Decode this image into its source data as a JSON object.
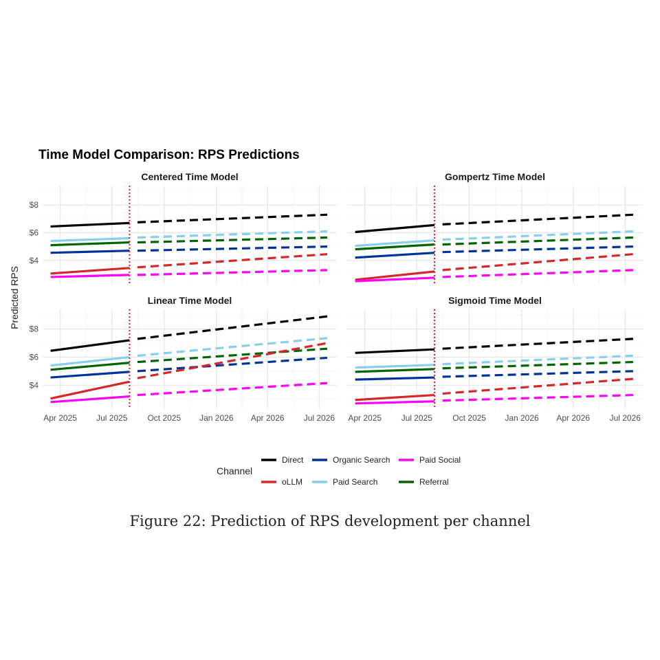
{
  "caption": "Figure 22: Prediction of RPS development per channel",
  "chart_data": {
    "type": "line",
    "title": "Time Model Comparison: RPS Predictions",
    "ylabel": "Predicted RPS",
    "xlabel": "",
    "x_range": [
      "2025-03-01",
      "2026-08-01"
    ],
    "y_range": [
      2.3,
      9.4
    ],
    "y_ticks": [
      4,
      6,
      8
    ],
    "y_tick_labels": [
      "$4",
      "$6",
      "$8"
    ],
    "x_ticks": [
      "2025-04-01",
      "2025-07-01",
      "2025-10-01",
      "2026-01-01",
      "2026-04-01",
      "2026-07-01"
    ],
    "x_tick_labels": [
      "Apr 2025",
      "Jul 2025",
      "Oct 2025",
      "Jan 2026",
      "Apr 2026",
      "Jul 2026"
    ],
    "cutoff_date": "2025-08-01",
    "grid": true,
    "legend": {
      "title": "Channel",
      "position": "bottom",
      "entries": [
        {
          "name": "Direct",
          "color": "#000000"
        },
        {
          "name": "oLLM",
          "color": "#d62728"
        },
        {
          "name": "Organic Search",
          "color": "#003399"
        },
        {
          "name": "Paid Search",
          "color": "#87cfeb"
        },
        {
          "name": "Paid Social",
          "color": "#ff00ff"
        },
        {
          "name": "Referral",
          "color": "#006400"
        }
      ]
    },
    "panels": [
      {
        "title": "Centered Time Model",
        "series": [
          {
            "name": "Direct",
            "color": "#000000",
            "observed": [
              [
                "2025-03-15",
                6.45
              ],
              [
                "2025-08-01",
                6.7
              ]
            ],
            "forecast": [
              [
                "2025-08-15",
                6.75
              ],
              [
                "2026-07-15",
                7.3
              ]
            ]
          },
          {
            "name": "Paid Search",
            "color": "#87cfeb",
            "observed": [
              [
                "2025-03-15",
                5.4
              ],
              [
                "2025-08-01",
                5.6
              ]
            ],
            "forecast": [
              [
                "2025-08-15",
                5.65
              ],
              [
                "2026-07-15",
                6.1
              ]
            ]
          },
          {
            "name": "Referral",
            "color": "#006400",
            "observed": [
              [
                "2025-03-15",
                5.1
              ],
              [
                "2025-08-01",
                5.3
              ]
            ],
            "forecast": [
              [
                "2025-08-15",
                5.3
              ],
              [
                "2026-07-15",
                5.65
              ]
            ]
          },
          {
            "name": "Organic Search",
            "color": "#003399",
            "observed": [
              [
                "2025-03-15",
                4.55
              ],
              [
                "2025-08-01",
                4.7
              ]
            ],
            "forecast": [
              [
                "2025-08-15",
                4.7
              ],
              [
                "2026-07-15",
                5.0
              ]
            ]
          },
          {
            "name": "oLLM",
            "color": "#d62728",
            "observed": [
              [
                "2025-03-15",
                3.05
              ],
              [
                "2025-08-01",
                3.45
              ]
            ],
            "forecast": [
              [
                "2025-08-15",
                3.5
              ],
              [
                "2026-07-15",
                4.45
              ]
            ]
          },
          {
            "name": "Paid Social",
            "color": "#ff00ff",
            "observed": [
              [
                "2025-03-15",
                2.8
              ],
              [
                "2025-08-01",
                2.95
              ]
            ],
            "forecast": [
              [
                "2025-08-15",
                2.95
              ],
              [
                "2026-07-15",
                3.3
              ]
            ]
          }
        ]
      },
      {
        "title": "Gompertz Time Model",
        "series": [
          {
            "name": "Direct",
            "color": "#000000",
            "observed": [
              [
                "2025-03-15",
                6.05
              ],
              [
                "2025-08-01",
                6.55
              ]
            ],
            "forecast": [
              [
                "2025-08-15",
                6.6
              ],
              [
                "2026-07-15",
                7.3
              ]
            ]
          },
          {
            "name": "Paid Search",
            "color": "#87cfeb",
            "observed": [
              [
                "2025-03-15",
                5.05
              ],
              [
                "2025-08-01",
                5.45
              ]
            ],
            "forecast": [
              [
                "2025-08-15",
                5.5
              ],
              [
                "2026-07-15",
                6.1
              ]
            ]
          },
          {
            "name": "Referral",
            "color": "#006400",
            "observed": [
              [
                "2025-03-15",
                4.8
              ],
              [
                "2025-08-01",
                5.15
              ]
            ],
            "forecast": [
              [
                "2025-08-15",
                5.15
              ],
              [
                "2026-07-15",
                5.65
              ]
            ]
          },
          {
            "name": "Organic Search",
            "color": "#003399",
            "observed": [
              [
                "2025-03-15",
                4.2
              ],
              [
                "2025-08-01",
                4.55
              ]
            ],
            "forecast": [
              [
                "2025-08-15",
                4.6
              ],
              [
                "2026-07-15",
                5.0
              ]
            ]
          },
          {
            "name": "oLLM",
            "color": "#d62728",
            "observed": [
              [
                "2025-03-15",
                2.6
              ],
              [
                "2025-08-01",
                3.2
              ]
            ],
            "forecast": [
              [
                "2025-08-15",
                3.3
              ],
              [
                "2026-07-15",
                4.45
              ]
            ]
          },
          {
            "name": "Paid Social",
            "color": "#ff00ff",
            "observed": [
              [
                "2025-03-15",
                2.5
              ],
              [
                "2025-08-01",
                2.75
              ]
            ],
            "forecast": [
              [
                "2025-08-15",
                2.8
              ],
              [
                "2026-07-15",
                3.3
              ]
            ]
          }
        ]
      },
      {
        "title": "Linear Time Model",
        "series": [
          {
            "name": "Direct",
            "color": "#000000",
            "observed": [
              [
                "2025-03-15",
                6.45
              ],
              [
                "2025-08-01",
                7.2
              ]
            ],
            "forecast": [
              [
                "2025-08-15",
                7.3
              ],
              [
                "2026-07-15",
                8.9
              ]
            ]
          },
          {
            "name": "Paid Search",
            "color": "#87cfeb",
            "observed": [
              [
                "2025-03-15",
                5.4
              ],
              [
                "2025-08-01",
                6.0
              ]
            ],
            "forecast": [
              [
                "2025-08-15",
                6.1
              ],
              [
                "2026-07-15",
                7.35
              ]
            ]
          },
          {
            "name": "Referral",
            "color": "#006400",
            "observed": [
              [
                "2025-03-15",
                5.1
              ],
              [
                "2025-08-01",
                5.6
              ]
            ],
            "forecast": [
              [
                "2025-08-15",
                5.65
              ],
              [
                "2026-07-15",
                6.6
              ]
            ]
          },
          {
            "name": "Organic Search",
            "color": "#003399",
            "observed": [
              [
                "2025-03-15",
                4.55
              ],
              [
                "2025-08-01",
                4.95
              ]
            ],
            "forecast": [
              [
                "2025-08-15",
                5.0
              ],
              [
                "2026-07-15",
                5.95
              ]
            ]
          },
          {
            "name": "oLLM",
            "color": "#d62728",
            "observed": [
              [
                "2025-03-15",
                3.05
              ],
              [
                "2025-08-01",
                4.25
              ]
            ],
            "forecast": [
              [
                "2025-08-15",
                4.5
              ],
              [
                "2026-07-15",
                7.0
              ]
            ]
          },
          {
            "name": "Paid Social",
            "color": "#ff00ff",
            "observed": [
              [
                "2025-03-15",
                2.8
              ],
              [
                "2025-08-01",
                3.2
              ]
            ],
            "forecast": [
              [
                "2025-08-15",
                3.3
              ],
              [
                "2026-07-15",
                4.15
              ]
            ]
          }
        ]
      },
      {
        "title": "Sigmoid Time Model",
        "series": [
          {
            "name": "Direct",
            "color": "#000000",
            "observed": [
              [
                "2025-03-15",
                6.3
              ],
              [
                "2025-08-01",
                6.55
              ]
            ],
            "forecast": [
              [
                "2025-08-15",
                6.6
              ],
              [
                "2026-07-15",
                7.3
              ]
            ]
          },
          {
            "name": "Paid Search",
            "color": "#87cfeb",
            "observed": [
              [
                "2025-03-15",
                5.25
              ],
              [
                "2025-08-01",
                5.45
              ]
            ],
            "forecast": [
              [
                "2025-08-15",
                5.5
              ],
              [
                "2026-07-15",
                6.1
              ]
            ]
          },
          {
            "name": "Referral",
            "color": "#006400",
            "observed": [
              [
                "2025-03-15",
                4.95
              ],
              [
                "2025-08-01",
                5.15
              ]
            ],
            "forecast": [
              [
                "2025-08-15",
                5.2
              ],
              [
                "2026-07-15",
                5.65
              ]
            ]
          },
          {
            "name": "Organic Search",
            "color": "#003399",
            "observed": [
              [
                "2025-03-15",
                4.4
              ],
              [
                "2025-08-01",
                4.55
              ]
            ],
            "forecast": [
              [
                "2025-08-15",
                4.6
              ],
              [
                "2026-07-15",
                5.0
              ]
            ]
          },
          {
            "name": "oLLM",
            "color": "#d62728",
            "observed": [
              [
                "2025-03-15",
                2.95
              ],
              [
                "2025-08-01",
                3.3
              ]
            ],
            "forecast": [
              [
                "2025-08-15",
                3.4
              ],
              [
                "2026-07-15",
                4.45
              ]
            ]
          },
          {
            "name": "Paid Social",
            "color": "#ff00ff",
            "observed": [
              [
                "2025-03-15",
                2.7
              ],
              [
                "2025-08-01",
                2.85
              ]
            ],
            "forecast": [
              [
                "2025-08-15",
                2.9
              ],
              [
                "2026-07-15",
                3.3
              ]
            ]
          }
        ]
      }
    ]
  }
}
